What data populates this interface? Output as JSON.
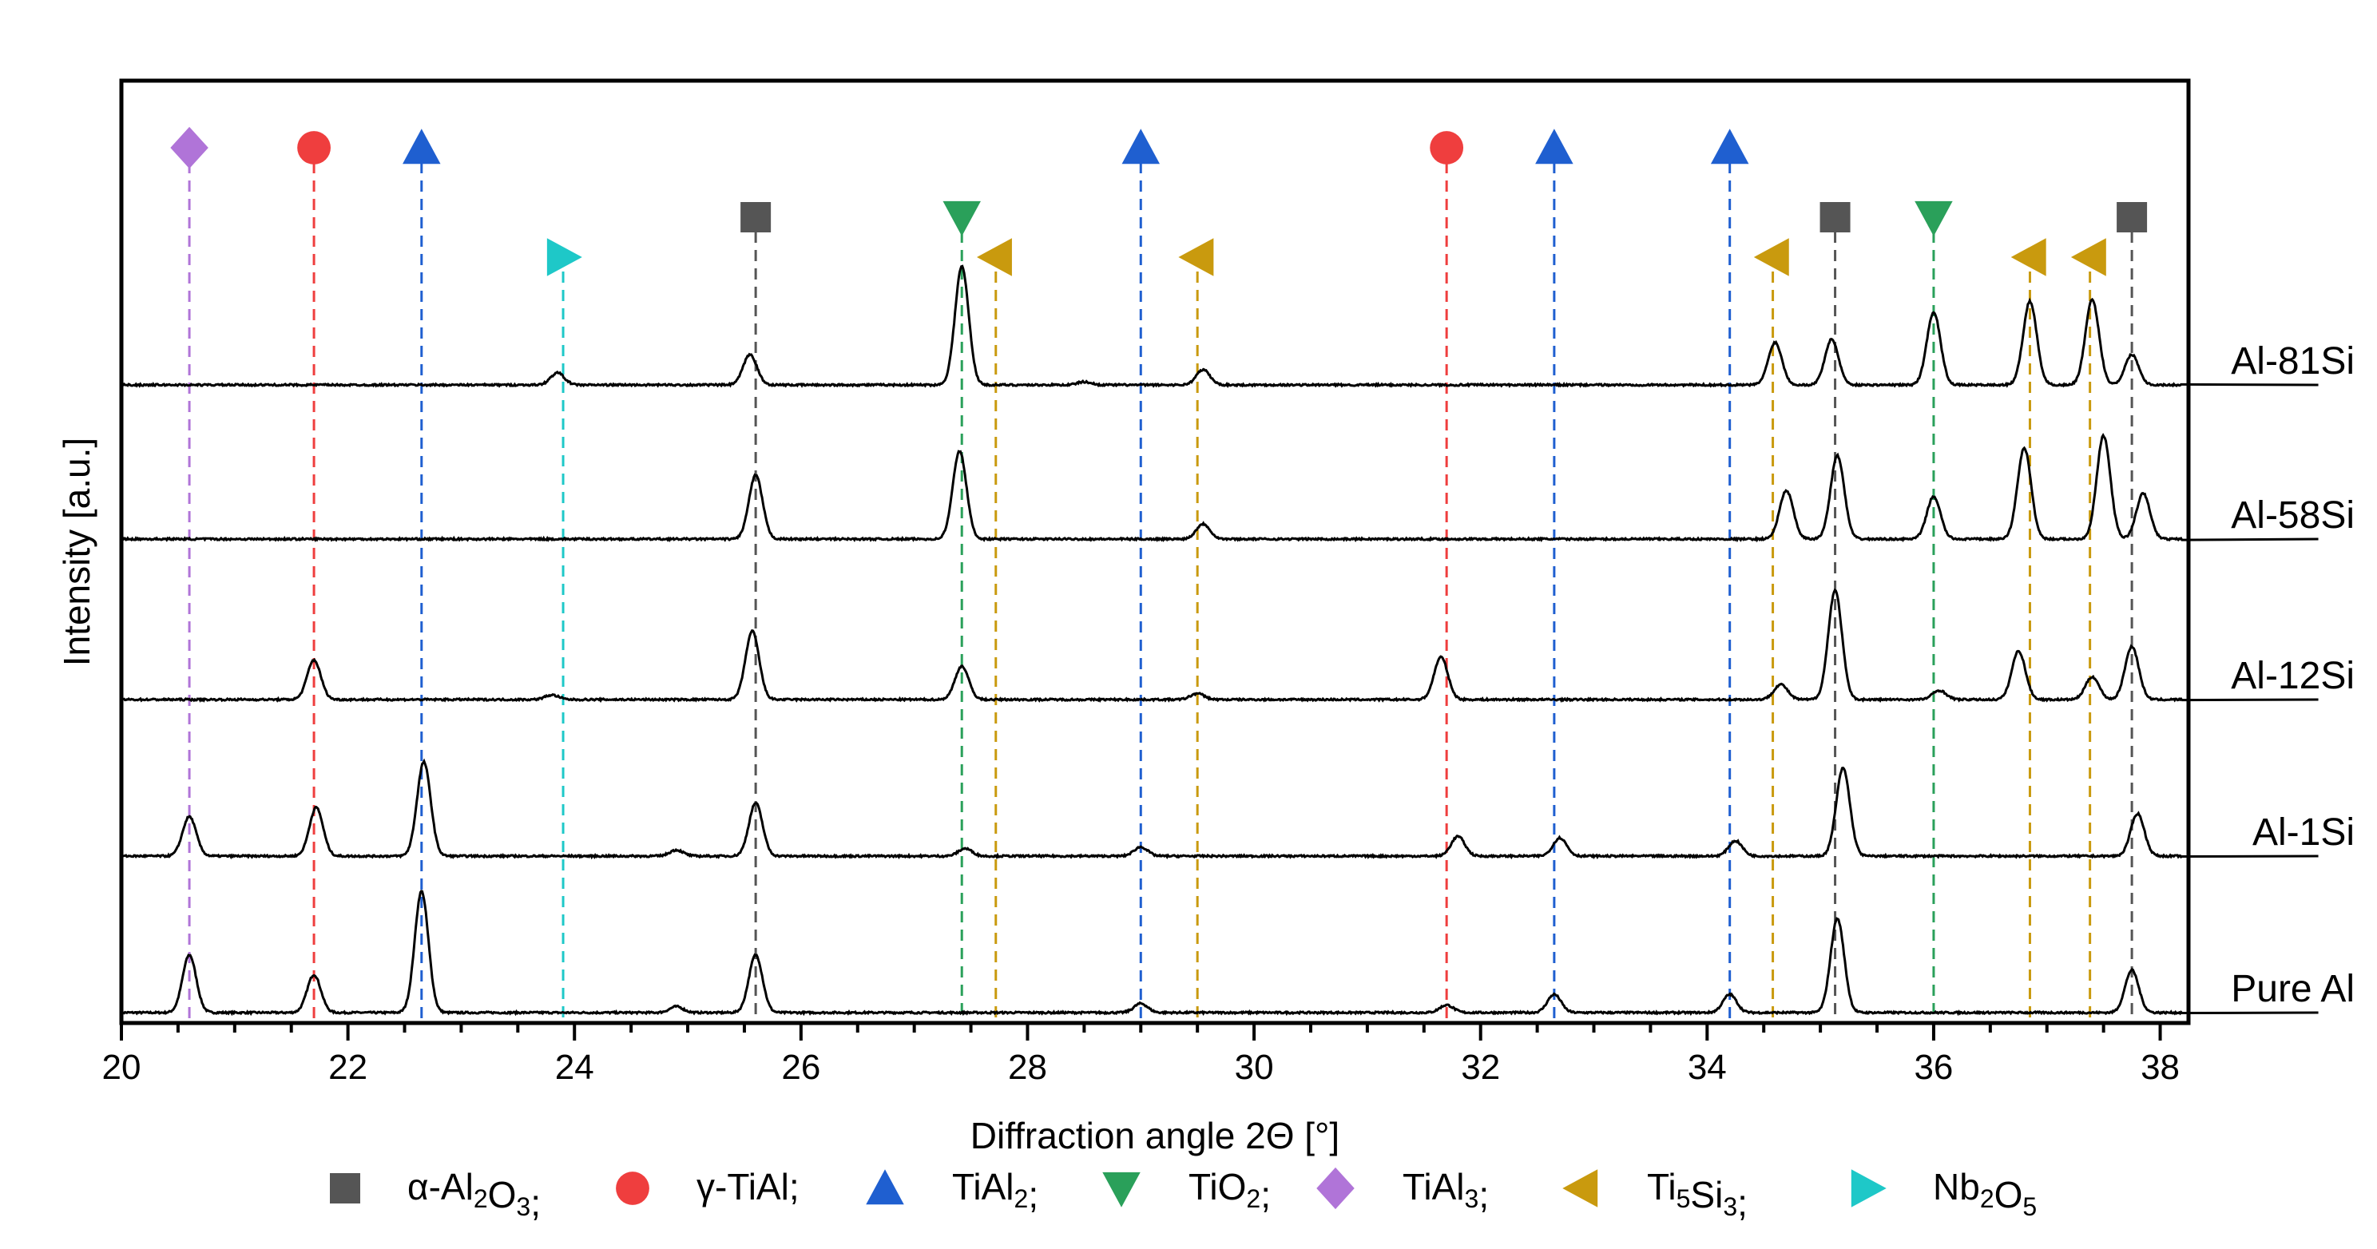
{
  "chart_data": {
    "type": "line",
    "xlabel": "Diffraction angle 2Θ [°]",
    "ylabel": "Intensity [a.u.]",
    "xlim": [
      20,
      38.25
    ],
    "xticks": [
      20,
      22,
      24,
      26,
      28,
      30,
      32,
      34,
      36,
      38
    ],
    "grid": false,
    "legend_position": "bottom",
    "colors": {
      "alpha_al2o3": "#555555",
      "gamma_tial": "#ef3e3e",
      "tial2": "#1f5fd0",
      "tio2": "#2aa05a",
      "tial3": "#b074d8",
      "ti5si3": "#c99a0e",
      "nb2o5": "#1ec8c8",
      "trace": "#000000"
    },
    "series": [
      {
        "name": "Pure Al",
        "peaks": [
          [
            20.6,
            0.38
          ],
          [
            21.7,
            0.25
          ],
          [
            22.65,
            0.8
          ],
          [
            24.9,
            0.04
          ],
          [
            25.6,
            0.38
          ],
          [
            29.0,
            0.06
          ],
          [
            31.7,
            0.05
          ],
          [
            32.65,
            0.12
          ],
          [
            34.2,
            0.12
          ],
          [
            35.15,
            0.62
          ],
          [
            37.75,
            0.28
          ]
        ]
      },
      {
        "name": "Al-1Si",
        "peaks": [
          [
            20.6,
            0.26
          ],
          [
            21.72,
            0.32
          ],
          [
            22.67,
            0.62
          ],
          [
            24.9,
            0.04
          ],
          [
            25.6,
            0.35
          ],
          [
            27.45,
            0.05
          ],
          [
            29.0,
            0.06
          ],
          [
            31.8,
            0.13
          ],
          [
            32.7,
            0.12
          ],
          [
            34.25,
            0.1
          ],
          [
            35.2,
            0.58
          ],
          [
            37.8,
            0.28
          ]
        ]
      },
      {
        "name": "Al-12Si",
        "peaks": [
          [
            21.7,
            0.26
          ],
          [
            23.8,
            0.03
          ],
          [
            25.57,
            0.45
          ],
          [
            27.42,
            0.22
          ],
          [
            29.5,
            0.04
          ],
          [
            31.65,
            0.28
          ],
          [
            34.65,
            0.1
          ],
          [
            35.13,
            0.72
          ],
          [
            36.05,
            0.06
          ],
          [
            36.75,
            0.32
          ],
          [
            37.4,
            0.15
          ],
          [
            37.75,
            0.35
          ]
        ]
      },
      {
        "name": "Al-58Si",
        "peaks": [
          [
            25.6,
            0.42
          ],
          [
            27.4,
            0.58
          ],
          [
            29.55,
            0.1
          ],
          [
            34.7,
            0.32
          ],
          [
            35.15,
            0.55
          ],
          [
            36.0,
            0.28
          ],
          [
            36.8,
            0.6
          ],
          [
            37.5,
            0.68
          ],
          [
            37.85,
            0.3
          ]
        ]
      },
      {
        "name": "Al-81Si",
        "peaks": [
          [
            23.85,
            0.08
          ],
          [
            25.55,
            0.2
          ],
          [
            27.42,
            0.78
          ],
          [
            28.5,
            0.02
          ],
          [
            29.55,
            0.1
          ],
          [
            34.6,
            0.28
          ],
          [
            35.1,
            0.3
          ],
          [
            36.0,
            0.48
          ],
          [
            36.85,
            0.55
          ],
          [
            37.4,
            0.56
          ],
          [
            37.75,
            0.2
          ]
        ]
      }
    ],
    "markers": [
      {
        "phase": "tial3",
        "x": 20.6,
        "row": "top"
      },
      {
        "phase": "gamma_tial",
        "x": 21.7,
        "row": "top"
      },
      {
        "phase": "tial2",
        "x": 22.65,
        "row": "top"
      },
      {
        "phase": "nb2o5",
        "x": 23.9,
        "row": "low"
      },
      {
        "phase": "alpha_al2o3",
        "x": 25.6,
        "row": "mid"
      },
      {
        "phase": "tio2",
        "x": 27.42,
        "row": "mid"
      },
      {
        "phase": "ti5si3",
        "x": 27.72,
        "row": "low"
      },
      {
        "phase": "tial2",
        "x": 29.0,
        "row": "top"
      },
      {
        "phase": "ti5si3",
        "x": 29.5,
        "row": "low"
      },
      {
        "phase": "gamma_tial",
        "x": 31.7,
        "row": "top"
      },
      {
        "phase": "tial2",
        "x": 32.65,
        "row": "top"
      },
      {
        "phase": "tial2",
        "x": 34.2,
        "row": "top"
      },
      {
        "phase": "ti5si3",
        "x": 34.58,
        "row": "low"
      },
      {
        "phase": "alpha_al2o3",
        "x": 35.13,
        "row": "mid"
      },
      {
        "phase": "tio2",
        "x": 36.0,
        "row": "mid"
      },
      {
        "phase": "ti5si3",
        "x": 36.85,
        "row": "low"
      },
      {
        "phase": "ti5si3",
        "x": 37.38,
        "row": "low"
      },
      {
        "phase": "alpha_al2o3",
        "x": 37.75,
        "row": "mid"
      }
    ],
    "legend": [
      {
        "phase": "alpha_al2o3",
        "shape": "square",
        "label": "α-Al",
        "sub1": "2",
        "mid": "O",
        "sub2": "3",
        "end": ";"
      },
      {
        "phase": "gamma_tial",
        "shape": "circle",
        "label": "γ-TiAl;",
        "sub1": "",
        "mid": "",
        "sub2": "",
        "end": ""
      },
      {
        "phase": "tial2",
        "shape": "triangle-up",
        "label": "TiAl",
        "sub1": "2",
        "mid": "",
        "sub2": "",
        "end": ";"
      },
      {
        "phase": "tio2",
        "shape": "triangle-down",
        "label": "TiO",
        "sub1": "2",
        "mid": "",
        "sub2": "",
        "end": ";"
      },
      {
        "phase": "tial3",
        "shape": "diamond",
        "label": "TiAl",
        "sub1": "3",
        "mid": "",
        "sub2": "",
        "end": ";"
      },
      {
        "phase": "ti5si3",
        "shape": "triangle-left",
        "label": "Ti",
        "sub1": "5",
        "mid": "Si",
        "sub2": "3",
        "end": ";"
      },
      {
        "phase": "nb2o5",
        "shape": "triangle-right",
        "label": "Nb",
        "sub1": "2",
        "mid": "O",
        "sub2": "5",
        "end": ""
      }
    ]
  }
}
